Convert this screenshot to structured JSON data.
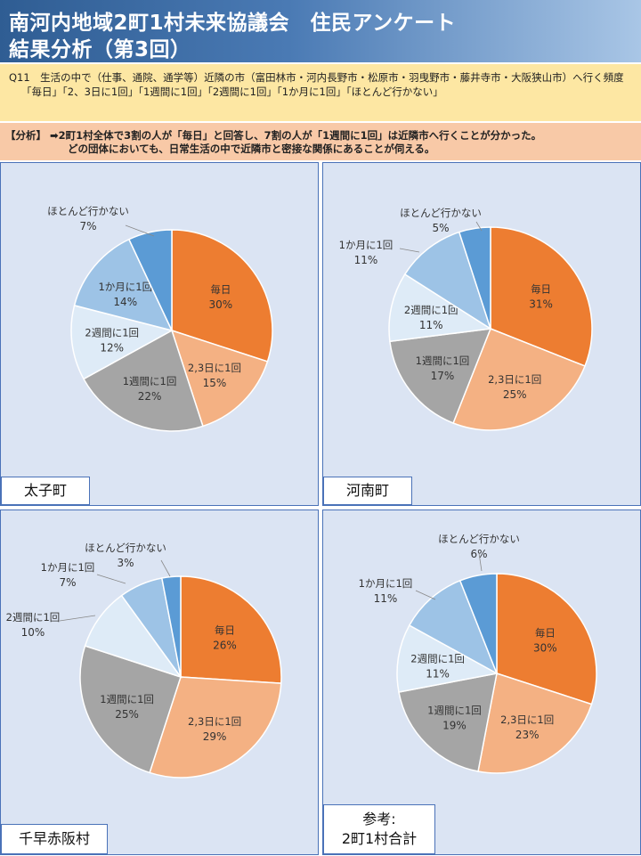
{
  "header": {
    "line1": "南河内地域2町1村未来協議会　住民アンケート",
    "line2": "結果分析（第3回）"
  },
  "question": {
    "line1": "Q11　生活の中で（仕事、通院、通学等）近隣の市（富田林市・河内長野市・松原市・羽曳野市・藤井寺市・大阪狭山市）へ行く頻度",
    "options": "「毎日」「2、3日に1回」「1週間に1回」「2週間に1回」「1か月に1回」「ほとんど行かない」"
  },
  "analysis": {
    "line1": "【分析】 ➡2町1村全体で3割の人が「毎日」と回答し、7割の人が「1週間に1回」は近隣市へ行くことが分かった。",
    "line2": "どの団体においても、日常生活の中で近隣市と密接な関係にあることが伺える。"
  },
  "colors": {
    "daily": "#ed7d31",
    "two_three_days": "#f4b183",
    "weekly": "#a5a5a5",
    "biweekly": "#deebf7",
    "monthly": "#9dc3e6",
    "rarely": "#5b9bd5"
  },
  "chart_data": [
    {
      "type": "pie",
      "title": "太子町",
      "categories": [
        "毎日",
        "2,3日に1回",
        "1週間に1回",
        "2週間に1回",
        "1か月に1回",
        "ほとんど行かない"
      ],
      "values": [
        30,
        15,
        22,
        12,
        14,
        7
      ],
      "labels": [
        "30%",
        "15%",
        "22%",
        "12%",
        "14%",
        "7%"
      ]
    },
    {
      "type": "pie",
      "title": "河南町",
      "categories": [
        "毎日",
        "2,3日に1回",
        "1週間に1回",
        "2週間に1回",
        "1か月に1回",
        "ほとんど行かない"
      ],
      "values": [
        31,
        25,
        17,
        11,
        11,
        5
      ],
      "labels": [
        "31%",
        "25%",
        "17%",
        "11%",
        "11%",
        "5%"
      ]
    },
    {
      "type": "pie",
      "title": "千早赤阪村",
      "categories": [
        "毎日",
        "2,3日に1回",
        "1週間に1回",
        "2週間に1回",
        "1か月に1回",
        "ほとんど行かない"
      ],
      "values": [
        26,
        29,
        25,
        10,
        7,
        3
      ],
      "labels": [
        "26%",
        "29%",
        "25%",
        "10%",
        "7%",
        "3%"
      ]
    },
    {
      "type": "pie",
      "title_line1": "参考:",
      "title_line2": "2町1村合計",
      "categories": [
        "毎日",
        "2,3日に1回",
        "1週間に1回",
        "2週間に1回",
        "1か月に1回",
        "ほとんど行かない"
      ],
      "values": [
        30,
        23,
        19,
        11,
        11,
        6
      ],
      "labels": [
        "30%",
        "23%",
        "19%",
        "11%",
        "11%",
        "6%"
      ]
    }
  ]
}
